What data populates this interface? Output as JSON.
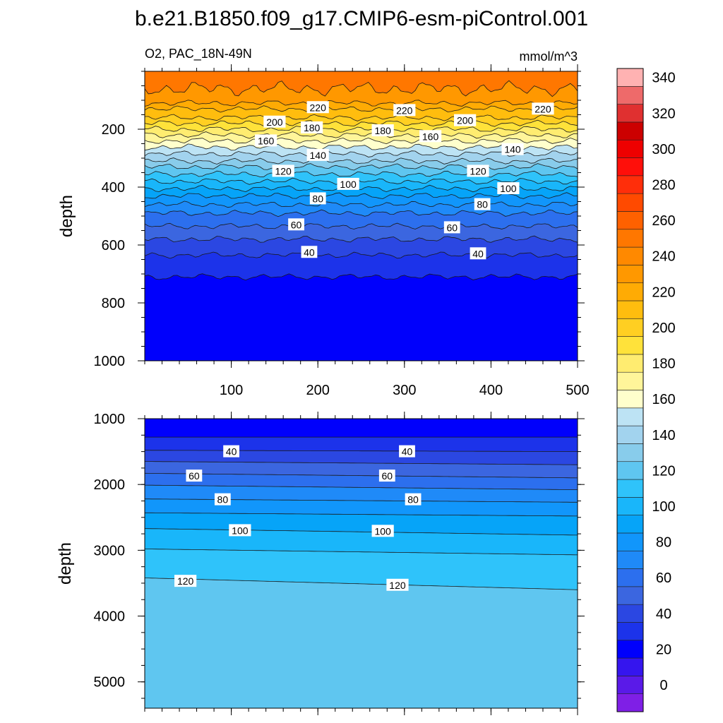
{
  "title": "b.e21.B1850.f09_g17.CMIP6-esm-piControl.001",
  "chart_data": [
    {
      "type": "contour",
      "panel": "upper",
      "left_label": "O2, PAC_18N-49N",
      "right_label": "mmol/m^3",
      "ylabel": "depth",
      "xlabel": "",
      "xlim": [
        0,
        500
      ],
      "ylim": [
        1000,
        0
      ],
      "y_inverted": true,
      "xticks": [
        100,
        200,
        300,
        400,
        500
      ],
      "yticks": [
        200,
        400,
        600,
        800,
        1000
      ],
      "isolines": [
        {
          "level": 240,
          "depth": 60
        },
        {
          "level": 230,
          "depth": 110
        },
        {
          "level": 220,
          "depth": 130
        },
        {
          "level": 210,
          "depth": 160
        },
        {
          "level": 200,
          "depth": 180
        },
        {
          "level": 190,
          "depth": 200
        },
        {
          "level": 180,
          "depth": 220
        },
        {
          "level": 170,
          "depth": 240
        },
        {
          "level": 160,
          "depth": 262
        },
        {
          "level": 150,
          "depth": 285
        },
        {
          "level": 140,
          "depth": 310
        },
        {
          "level": 130,
          "depth": 330
        },
        {
          "level": 120,
          "depth": 355
        },
        {
          "level": 110,
          "depth": 380
        },
        {
          "level": 100,
          "depth": 405
        },
        {
          "level": 90,
          "depth": 430
        },
        {
          "level": 80,
          "depth": 460
        },
        {
          "level": 70,
          "depth": 490
        },
        {
          "level": 60,
          "depth": 535
        },
        {
          "level": 50,
          "depth": 580
        },
        {
          "level": 40,
          "depth": 635
        },
        {
          "level": 30,
          "depth": 710
        }
      ],
      "contour_labels": [
        {
          "text": "220",
          "x": 200,
          "y": 125
        },
        {
          "text": "220",
          "x": 300,
          "y": 135
        },
        {
          "text": "220",
          "x": 460,
          "y": 130
        },
        {
          "text": "200",
          "x": 150,
          "y": 175
        },
        {
          "text": "200",
          "x": 370,
          "y": 170
        },
        {
          "text": "180",
          "x": 193,
          "y": 195
        },
        {
          "text": "180",
          "x": 275,
          "y": 205
        },
        {
          "text": "160",
          "x": 140,
          "y": 240
        },
        {
          "text": "160",
          "x": 330,
          "y": 225
        },
        {
          "text": "140",
          "x": 200,
          "y": 290
        },
        {
          "text": "140",
          "x": 425,
          "y": 270
        },
        {
          "text": "120",
          "x": 160,
          "y": 345
        },
        {
          "text": "120",
          "x": 385,
          "y": 345
        },
        {
          "text": "100",
          "x": 235,
          "y": 390
        },
        {
          "text": "100",
          "x": 420,
          "y": 405
        },
        {
          "text": "80",
          "x": 200,
          "y": 440
        },
        {
          "text": "80",
          "x": 390,
          "y": 460
        },
        {
          "text": "60",
          "x": 175,
          "y": 530
        },
        {
          "text": "60",
          "x": 355,
          "y": 540
        },
        {
          "text": "40",
          "x": 190,
          "y": 625
        },
        {
          "text": "40",
          "x": 385,
          "y": 630
        }
      ]
    },
    {
      "type": "contour",
      "panel": "lower",
      "ylabel": "depth",
      "xlabel": "",
      "xlim": [
        0,
        500
      ],
      "ylim": [
        5400,
        1000
      ],
      "y_inverted": true,
      "yticks": [
        1000,
        2000,
        3000,
        4000,
        5000
      ],
      "isolines": [
        {
          "level": 30,
          "depth_left": 1280,
          "depth_right": 1280
        },
        {
          "level": 40,
          "depth_left": 1480,
          "depth_right": 1500
        },
        {
          "level": 50,
          "depth_left": 1650,
          "depth_right": 1700
        },
        {
          "level": 60,
          "depth_left": 1830,
          "depth_right": 1900
        },
        {
          "level": 70,
          "depth_left": 2010,
          "depth_right": 2080
        },
        {
          "level": 80,
          "depth_left": 2220,
          "depth_right": 2270
        },
        {
          "level": 90,
          "depth_left": 2430,
          "depth_right": 2480
        },
        {
          "level": 100,
          "depth_left": 2670,
          "depth_right": 2770
        },
        {
          "level": 110,
          "depth_left": 2980,
          "depth_right": 3070
        },
        {
          "level": 120,
          "depth_left": 3420,
          "depth_right": 3600
        }
      ],
      "contour_labels": [
        {
          "text": "40",
          "x": 100,
          "y": 1500
        },
        {
          "text": "40",
          "x": 303,
          "y": 1500
        },
        {
          "text": "60",
          "x": 57,
          "y": 1870
        },
        {
          "text": "60",
          "x": 280,
          "y": 1870
        },
        {
          "text": "80",
          "x": 90,
          "y": 2230
        },
        {
          "text": "80",
          "x": 310,
          "y": 2230
        },
        {
          "text": "100",
          "x": 110,
          "y": 2700
        },
        {
          "text": "100",
          "x": 275,
          "y": 2710
        },
        {
          "text": "120",
          "x": 47,
          "y": 3470
        },
        {
          "text": "120",
          "x": 292,
          "y": 3530
        }
      ]
    }
  ],
  "colorbar": {
    "labels": [
      "0",
      "20",
      "40",
      "60",
      "80",
      "100",
      "120",
      "140",
      "160",
      "180",
      "200",
      "220",
      "240",
      "260",
      "280",
      "300",
      "320",
      "340"
    ],
    "min": -10,
    "step": 10,
    "colors": [
      "#7f1fe6",
      "#5a1ae8",
      "#3515ee",
      "#0000fc",
      "#1c33ea",
      "#2b47e2",
      "#3b66e0",
      "#2c6fee",
      "#1f8af8",
      "#1196fb",
      "#06a4f8",
      "#19b6fa",
      "#2fc3fa",
      "#5fc6f0",
      "#88cceb",
      "#a2d3ee",
      "#bde3f4",
      "#ffffcc",
      "#fff59a",
      "#ffec70",
      "#ffe23a",
      "#ffcf22",
      "#ffbd0e",
      "#ffab04",
      "#ff9800",
      "#ff8900",
      "#ff7700",
      "#ff6100",
      "#ff4a00",
      "#ff2e0a",
      "#ff0f0a",
      "#ee0000",
      "#cc0000",
      "#e03030",
      "#ee6a6a",
      "#ffb2b2"
    ]
  }
}
